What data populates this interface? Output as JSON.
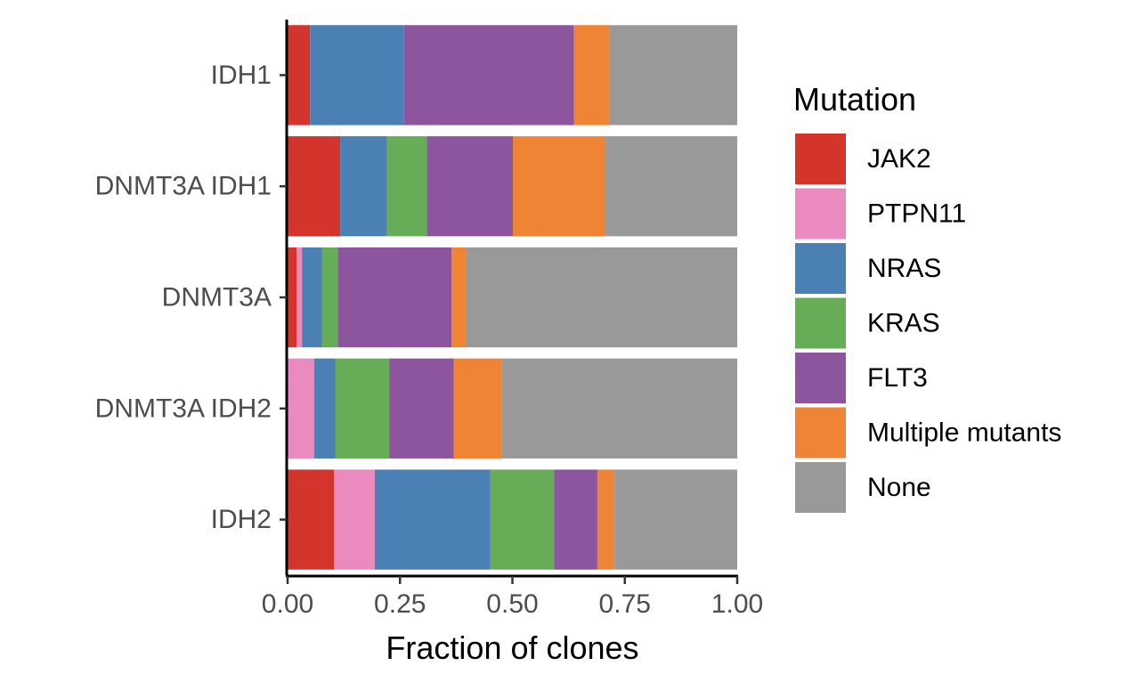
{
  "chart_data": {
    "type": "bar",
    "orientation": "horizontal",
    "stacked": true,
    "categories": [
      "IDH1",
      "DNMT3A IDH1",
      "DNMT3A",
      "DNMT3A IDH2",
      "IDH2"
    ],
    "series": [
      {
        "name": "JAK2",
        "color": "#D3352C",
        "values": [
          0.05,
          0.117,
          0.02,
          0.0,
          0.103
        ]
      },
      {
        "name": "PTPN11",
        "color": "#EA8ABF",
        "values": [
          0.0,
          0.0,
          0.012,
          0.059,
          0.091
        ]
      },
      {
        "name": "NRAS",
        "color": "#4A80B3",
        "values": [
          0.209,
          0.104,
          0.045,
          0.047,
          0.257
        ]
      },
      {
        "name": "KRAS",
        "color": "#67AC57",
        "values": [
          0.0,
          0.089,
          0.035,
          0.12,
          0.142
        ]
      },
      {
        "name": "FLT3",
        "color": "#8E559F",
        "values": [
          0.378,
          0.191,
          0.253,
          0.144,
          0.096
        ]
      },
      {
        "name": "Multiple mutants",
        "color": "#EF8534",
        "values": [
          0.079,
          0.206,
          0.033,
          0.107,
          0.038
        ]
      },
      {
        "name": "None",
        "color": "#999999",
        "values": [
          0.284,
          0.293,
          0.602,
          0.523,
          0.273
        ]
      }
    ],
    "xlabel": "Fraction of clones",
    "ylabel": "",
    "xlim": [
      0,
      1
    ],
    "xticks": [
      "0.00",
      "0.25",
      "0.50",
      "0.75",
      "1.00"
    ],
    "legend": {
      "title": "Mutation",
      "position": "right"
    },
    "grid": false
  }
}
